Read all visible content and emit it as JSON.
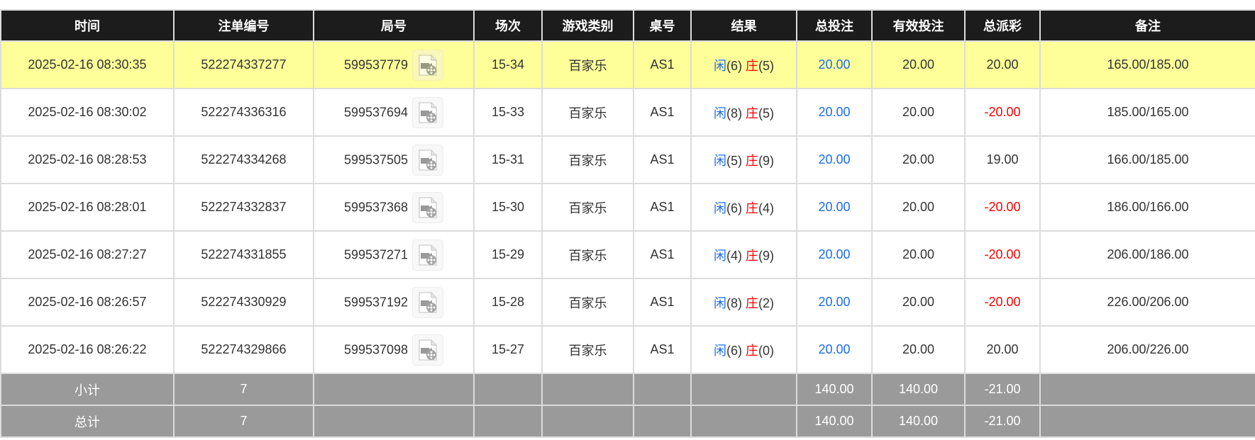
{
  "columns": [
    "时间",
    "注单编号",
    "局号",
    "场次",
    "游戏类别",
    "桌号",
    "结果",
    "总投注",
    "有效投注",
    "总派彩",
    "备注"
  ],
  "player_label": "闲",
  "banker_label": "庄",
  "rows": [
    {
      "time": "2025-02-16 08:30:35",
      "bet_id": "522274337277",
      "round": "599537779",
      "session": "15-34",
      "game": "百家乐",
      "table": "AS1",
      "player": "6",
      "banker": "5",
      "total_bet": "20.00",
      "valid_bet": "20.00",
      "payout": "20.00",
      "payout_negative": false,
      "note": "165.00/185.00",
      "highlighted": true
    },
    {
      "time": "2025-02-16 08:30:02",
      "bet_id": "522274336316",
      "round": "599537694",
      "session": "15-33",
      "game": "百家乐",
      "table": "AS1",
      "player": "8",
      "banker": "5",
      "total_bet": "20.00",
      "valid_bet": "20.00",
      "payout": "-20.00",
      "payout_negative": true,
      "note": "185.00/165.00",
      "highlighted": false
    },
    {
      "time": "2025-02-16 08:28:53",
      "bet_id": "522274334268",
      "round": "599537505",
      "session": "15-31",
      "game": "百家乐",
      "table": "AS1",
      "player": "5",
      "banker": "9",
      "total_bet": "20.00",
      "valid_bet": "20.00",
      "payout": "19.00",
      "payout_negative": false,
      "note": "166.00/185.00",
      "highlighted": false
    },
    {
      "time": "2025-02-16 08:28:01",
      "bet_id": "522274332837",
      "round": "599537368",
      "session": "15-30",
      "game": "百家乐",
      "table": "AS1",
      "player": "6",
      "banker": "4",
      "total_bet": "20.00",
      "valid_bet": "20.00",
      "payout": "-20.00",
      "payout_negative": true,
      "note": "186.00/166.00",
      "highlighted": false
    },
    {
      "time": "2025-02-16 08:27:27",
      "bet_id": "522274331855",
      "round": "599537271",
      "session": "15-29",
      "game": "百家乐",
      "table": "AS1",
      "player": "4",
      "banker": "9",
      "total_bet": "20.00",
      "valid_bet": "20.00",
      "payout": "-20.00",
      "payout_negative": true,
      "note": "206.00/186.00",
      "highlighted": false
    },
    {
      "time": "2025-02-16 08:26:57",
      "bet_id": "522274330929",
      "round": "599537192",
      "session": "15-28",
      "game": "百家乐",
      "table": "AS1",
      "player": "8",
      "banker": "2",
      "total_bet": "20.00",
      "valid_bet": "20.00",
      "payout": "-20.00",
      "payout_negative": true,
      "note": "226.00/206.00",
      "highlighted": false
    },
    {
      "time": "2025-02-16 08:26:22",
      "bet_id": "522274329866",
      "round": "599537098",
      "session": "15-27",
      "game": "百家乐",
      "table": "AS1",
      "player": "6",
      "banker": "0",
      "total_bet": "20.00",
      "valid_bet": "20.00",
      "payout": "20.00",
      "payout_negative": false,
      "note": "206.00/226.00",
      "highlighted": false
    }
  ],
  "summary": [
    {
      "label": "小计",
      "count": "7",
      "total_bet": "140.00",
      "valid_bet": "140.00",
      "payout": "-21.00"
    },
    {
      "label": "总计",
      "count": "7",
      "total_bet": "140.00",
      "valid_bet": "140.00",
      "payout": "-21.00"
    }
  ],
  "colors": {
    "header_bg": "#1c1c1c",
    "highlight_row": "#ffff99",
    "summary_bg": "#9a9a9a",
    "player": "#1a6cf0",
    "banker_negative": "#ff0000"
  },
  "icons": {
    "replay": "video-replay-icon"
  }
}
